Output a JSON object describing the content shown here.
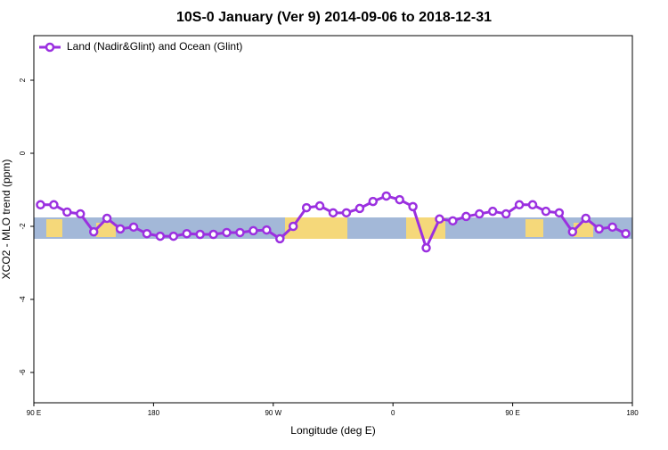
{
  "chart_data": {
    "type": "line",
    "title": "10S-0 January (Ver 9)   2014-09-06 to 2018-12-31",
    "x_label": "Longitude (deg E)",
    "y_label": "XCO2 - MLO trend (ppm)",
    "x": [
      95,
      105,
      115,
      125,
      135,
      145,
      155,
      165,
      175,
      185,
      195,
      205,
      215,
      225,
      235,
      245,
      255,
      265,
      275,
      285,
      295,
      305,
      315,
      325,
      335,
      345,
      355,
      365,
      375,
      385,
      395,
      405,
      415,
      425,
      435,
      445,
      455,
      465,
      475,
      485,
      495,
      505,
      515,
      525,
      535
    ],
    "series": [
      {
        "name": "Land (Nadir&Glint) and Ocean (Glint)",
        "color": "#9b30e0",
        "values": [
          -1.41,
          -1.41,
          -1.61,
          -1.66,
          -2.15,
          -1.78,
          -2.07,
          -2.02,
          -2.2,
          -2.27,
          -2.27,
          -2.2,
          -2.22,
          -2.22,
          -2.17,
          -2.17,
          -2.12,
          -2.1,
          -2.34,
          -2.0,
          -1.49,
          -1.44,
          -1.63,
          -1.63,
          -1.51,
          -1.32,
          -1.17,
          -1.27,
          -1.46,
          -2.59,
          -1.8,
          -1.85,
          -1.73,
          -1.66,
          -1.59,
          -1.66,
          -1.41,
          -1.41,
          -1.59,
          -1.63,
          -2.15,
          -1.78,
          -2.07,
          -2.02,
          -2.2
        ]
      }
    ],
    "xlim": [
      90,
      540
    ],
    "xticks": [
      {
        "value": 90,
        "label": "90 E"
      },
      180,
      {
        "value": 270,
        "label": "90 W"
      },
      {
        "value": 360,
        "label": "0"
      },
      {
        "value": 450,
        "label": "90 E"
      },
      {
        "value": 540,
        "label": "180"
      }
    ],
    "ylim": [
      -6.83,
      3.22
    ],
    "yticks": [
      -6,
      -4,
      -2,
      0,
      2
    ],
    "legend": "top-left"
  }
}
